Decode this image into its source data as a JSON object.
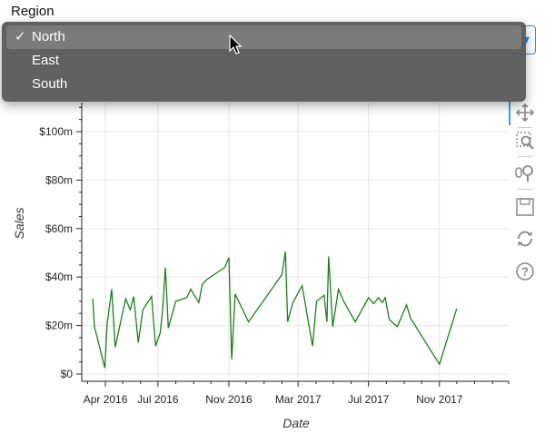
{
  "filter": {
    "label": "Region",
    "selected": "North",
    "options": [
      {
        "label": "North",
        "checked": true
      },
      {
        "label": "East",
        "checked": false
      },
      {
        "label": "South",
        "checked": false
      }
    ]
  },
  "chart_data": {
    "type": "line",
    "xlabel": "Date",
    "ylabel": "Sales",
    "line_color": "#1a7f1a",
    "grid": true,
    "x_ticks": [
      "Apr 2016",
      "Jul 2016",
      "Nov 2016",
      "Mar 2017",
      "Jul 2017",
      "Nov 2017"
    ],
    "y_ticks": [
      "$0",
      "$20m",
      "$40m",
      "$60m",
      "$80m",
      "$100m"
    ],
    "ylim": [
      -3,
      112
    ],
    "xlim": [
      "2016-02-20",
      "2018-03-01"
    ],
    "series": [
      {
        "x": [
          "2016-03-10",
          "2016-03-13",
          "2016-03-31",
          "2016-04-04",
          "2016-04-12",
          "2016-04-18",
          "2016-05-06",
          "2016-05-14",
          "2016-05-20",
          "2016-05-28",
          "2016-06-05",
          "2016-06-20",
          "2016-06-27",
          "2016-07-05",
          "2016-07-09",
          "2016-07-14",
          "2016-07-19",
          "2016-08-01",
          "2016-08-20",
          "2016-08-27",
          "2016-09-10",
          "2016-09-16",
          "2016-09-24",
          "2016-10-25",
          "2016-11-01",
          "2016-11-06",
          "2016-11-12",
          "2016-12-05",
          "2017-02-01",
          "2017-02-07",
          "2017-02-11",
          "2017-02-20",
          "2017-03-08",
          "2017-03-26",
          "2017-04-02",
          "2017-04-15",
          "2017-04-20",
          "2017-04-23",
          "2017-04-30",
          "2017-05-10",
          "2017-05-19",
          "2017-06-08",
          "2017-07-01",
          "2017-07-10",
          "2017-07-18",
          "2017-07-25",
          "2017-07-30",
          "2017-08-06",
          "2017-08-20",
          "2017-09-05",
          "2017-09-12",
          "2017-11-01",
          "2017-12-01"
        ],
        "y": [
          31,
          19.5,
          2.5,
          20.5,
          35,
          11,
          31,
          26.5,
          32,
          13,
          26.5,
          32,
          11.5,
          17,
          26,
          44,
          19,
          30,
          31.5,
          35,
          29.5,
          37,
          39,
          44,
          48,
          6,
          33,
          21.5,
          41,
          50.5,
          21.5,
          29.5,
          36.5,
          11.5,
          30,
          32.5,
          21.5,
          48.5,
          19.5,
          35,
          30,
          21.5,
          31.5,
          29,
          31.5,
          29.5,
          31.5,
          22.5,
          19.5,
          28.5,
          23,
          4,
          27
        ]
      }
    ]
  },
  "toolbar": {
    "tools": [
      {
        "icon": "pan-icon",
        "active": true
      },
      {
        "icon": "box-zoom-icon",
        "active": false
      },
      {
        "icon": "wheel-zoom-icon",
        "active": false
      },
      {
        "icon": "save-icon",
        "active": false
      },
      {
        "icon": "reset-icon",
        "active": false
      },
      {
        "icon": "help-icon",
        "active": false
      }
    ]
  }
}
